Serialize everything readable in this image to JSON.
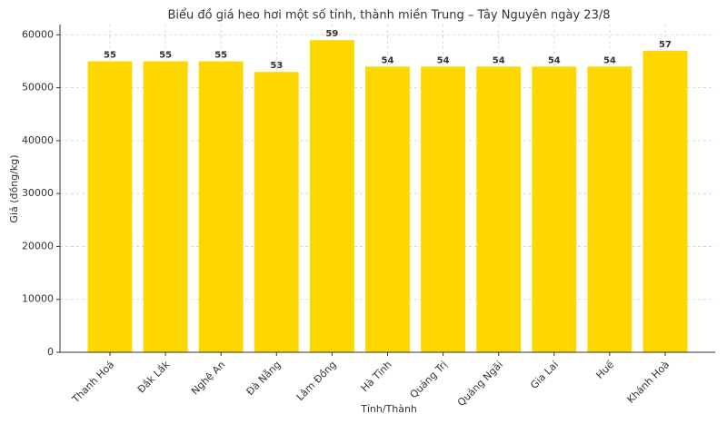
{
  "chart_data": {
    "type": "bar",
    "title": "Biểu đồ giá heo hơi một số tỉnh, thành miền Trung – Tây Nguyên ngày 23/8",
    "x_label": "Tỉnh/Thành",
    "y_label": "Giá (đồng/kg)",
    "categories": [
      "Thanh Hoá",
      "Đắk Lắk",
      "Nghệ An",
      "Đà Nẵng",
      "Lâm Đồng",
      "Hà Tĩnh",
      "Quảng Trị",
      "Quảng Ngãi",
      "Gia Lai",
      "Huế",
      "Khánh Hoà"
    ],
    "values": [
      55000,
      55000,
      55000,
      53000,
      59000,
      54000,
      54000,
      54000,
      54000,
      54000,
      57000
    ],
    "value_labels": [
      "55",
      "55",
      "55",
      "53",
      "59",
      "54",
      "54",
      "54",
      "54",
      "54",
      "57"
    ],
    "color": "#FFD700",
    "ylim": [
      0,
      61950
    ],
    "yticks": [
      0,
      10000,
      20000,
      30000,
      40000,
      50000,
      60000
    ],
    "grid": true
  }
}
